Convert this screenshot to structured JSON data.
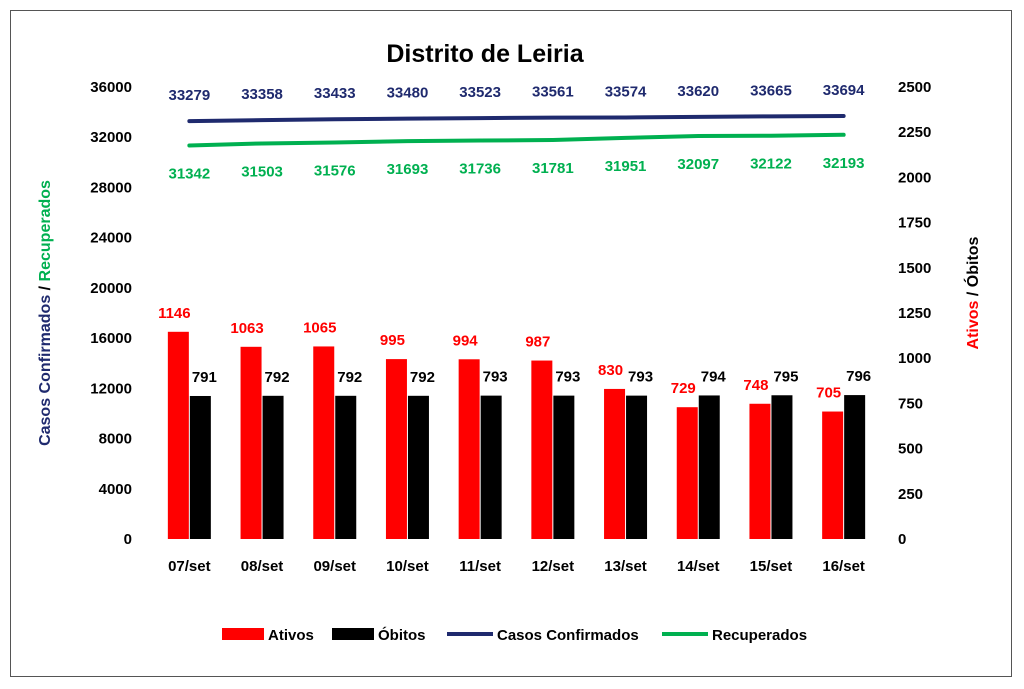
{
  "chart_data": {
    "type": "bar",
    "title": "Distrito de Leiria",
    "categories": [
      "07/set",
      "08/set",
      "09/set",
      "10/set",
      "11/set",
      "12/set",
      "13/set",
      "14/set",
      "15/set",
      "16/set"
    ],
    "y_left": {
      "title_part1": "Casos Confirmados",
      "title_sep": " / ",
      "title_part2": "Recuperados",
      "range": [
        0,
        36000
      ],
      "ticks": [
        "0",
        "4000",
        "8000",
        "12000",
        "16000",
        "20000",
        "24000",
        "28000",
        "32000",
        "36000"
      ]
    },
    "y_right": {
      "title_part1": "Ativos",
      "title_sep": " / ",
      "title_part2": "Óbitos",
      "range": [
        0,
        2500
      ],
      "ticks": [
        "0",
        "250",
        "500",
        "750",
        "1000",
        "1250",
        "1500",
        "1750",
        "2000",
        "2250",
        "2500"
      ]
    },
    "grid": false,
    "legend_position": "bottom",
    "series": [
      {
        "name": "Ativos",
        "kind": "bar",
        "axis": "right",
        "color": "#ff0000",
        "label_color": "#ff0000",
        "values": [
          1146,
          1063,
          1065,
          995,
          994,
          987,
          830,
          729,
          748,
          705
        ],
        "labels": [
          "1146",
          "1063",
          "1065",
          "995",
          "994",
          "987",
          "830",
          "729",
          "748",
          "705"
        ]
      },
      {
        "name": "Óbitos",
        "kind": "bar",
        "axis": "right",
        "color": "#000000",
        "label_color": "#000000",
        "values": [
          791,
          792,
          792,
          792,
          793,
          793,
          793,
          794,
          795,
          796
        ],
        "labels": [
          "791",
          "792",
          "792",
          "792",
          "793",
          "793",
          "793",
          "794",
          "795",
          "796"
        ]
      },
      {
        "name": "Casos Confirmados",
        "kind": "line",
        "axis": "left",
        "color": "#1f2a6e",
        "label_color": "#1f2a6e",
        "values": [
          33279,
          33358,
          33433,
          33480,
          33523,
          33561,
          33574,
          33620,
          33665,
          33694
        ],
        "labels": [
          "33279",
          "33358",
          "33433",
          "33480",
          "33523",
          "33561",
          "33574",
          "33620",
          "33665",
          "33694"
        ]
      },
      {
        "name": "Recuperados",
        "kind": "line",
        "axis": "left",
        "color": "#00b050",
        "label_color": "#00b050",
        "values": [
          31342,
          31503,
          31576,
          31693,
          31736,
          31781,
          31951,
          32097,
          32122,
          32193
        ],
        "labels": [
          "31342",
          "31503",
          "31576",
          "31693",
          "31736",
          "31781",
          "31951",
          "32097",
          "32122",
          "32193"
        ]
      }
    ],
    "colors": {
      "confirmed_title": "#1f2a6e",
      "recovered_title": "#00b050",
      "active_title": "#ff0000",
      "deaths_title": "#000000"
    }
  }
}
